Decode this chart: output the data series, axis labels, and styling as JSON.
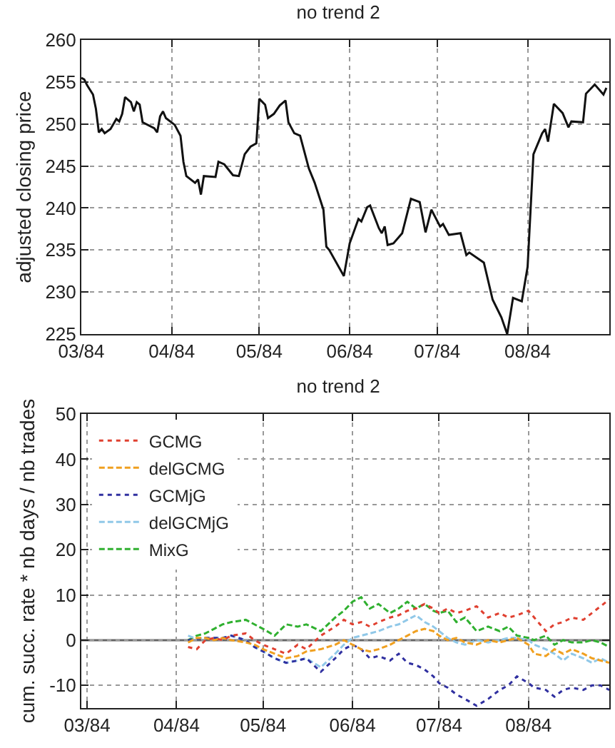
{
  "chart_data": [
    {
      "type": "line",
      "title": "no trend 2",
      "ylabel": "adjusted closing price",
      "grid": true,
      "legend": false,
      "marker": "none",
      "xlim": [
        "1984-03-01",
        "1984-08-29"
      ],
      "xticks": [
        {
          "value": "1984-03-01",
          "label": "03/84"
        },
        {
          "value": "1984-04-01",
          "label": "04/84"
        },
        {
          "value": "1984-05-01",
          "label": "05/84"
        },
        {
          "value": "1984-06-01",
          "label": "06/84"
        },
        {
          "value": "1984-07-01",
          "label": "07/84"
        },
        {
          "value": "1984-08-01",
          "label": "08/84"
        }
      ],
      "ylim": [
        225,
        260
      ],
      "yticks": [
        225,
        230,
        235,
        240,
        245,
        250,
        255,
        260
      ],
      "x": [
        "1984-03-01",
        "1984-03-02",
        "1984-03-03",
        "1984-03-05",
        "1984-03-06",
        "1984-03-07",
        "1984-03-08",
        "1984-03-09",
        "1984-03-11",
        "1984-03-12",
        "1984-03-13",
        "1984-03-14",
        "1984-03-15",
        "1984-03-16",
        "1984-03-18",
        "1984-03-19",
        "1984-03-20",
        "1984-03-21",
        "1984-03-22",
        "1984-03-26",
        "1984-03-27",
        "1984-03-28",
        "1984-03-29",
        "1984-03-30",
        "1984-04-02",
        "1984-04-04",
        "1984-04-05",
        "1984-04-06",
        "1984-04-09",
        "1984-04-10",
        "1984-04-11",
        "1984-04-12",
        "1984-04-16",
        "1984-04-17",
        "1984-04-19",
        "1984-04-22",
        "1984-04-24",
        "1984-04-26",
        "1984-04-28",
        "1984-04-30",
        "1984-05-01",
        "1984-05-03",
        "1984-05-04",
        "1984-05-06",
        "1984-05-08",
        "1984-05-10",
        "1984-05-11",
        "1984-05-13",
        "1984-05-15",
        "1984-05-18",
        "1984-05-20",
        "1984-05-23",
        "1984-05-24",
        "1984-05-25",
        "1984-05-30",
        "1984-06-01",
        "1984-06-04",
        "1984-06-05",
        "1984-06-07",
        "1984-06-08",
        "1984-06-11",
        "1984-06-12",
        "1984-06-13",
        "1984-06-14",
        "1984-06-16",
        "1984-06-19",
        "1984-06-22",
        "1984-06-25",
        "1984-06-27",
        "1984-06-29",
        "1984-07-02",
        "1984-07-03",
        "1984-07-05",
        "1984-07-09",
        "1984-07-11",
        "1984-07-12",
        "1984-07-17",
        "1984-07-20",
        "1984-07-23",
        "1984-07-25",
        "1984-07-27",
        "1984-07-30",
        "1984-08-01",
        "1984-08-03",
        "1984-08-06",
        "1984-08-07",
        "1984-08-08",
        "1984-08-10",
        "1984-08-13",
        "1984-08-15",
        "1984-08-16",
        "1984-08-20",
        "1984-08-21",
        "1984-08-24",
        "1984-08-27",
        "1984-08-28"
      ],
      "series": [
        {
          "color": "#111111",
          "line_style": "solid",
          "values": [
            255.5,
            255.3,
            254.6,
            253.5,
            251.8,
            249.0,
            249.4,
            248.9,
            249.4,
            250.0,
            250.6,
            250.3,
            251.2,
            253.2,
            252.6,
            251.5,
            252.6,
            252.3,
            250.2,
            249.5,
            249.0,
            250.9,
            251.5,
            250.7,
            249.9,
            248.6,
            245.5,
            243.8,
            243.0,
            243.4,
            241.6,
            243.8,
            243.7,
            245.5,
            245.2,
            243.9,
            243.8,
            246.4,
            247.3,
            247.7,
            253.0,
            252.3,
            250.7,
            251.2,
            252.2,
            252.8,
            250.2,
            248.9,
            248.6,
            244.7,
            243.0,
            239.8,
            235.4,
            235.0,
            231.9,
            235.8,
            238.7,
            238.4,
            240.1,
            240.3,
            237.6,
            237.0,
            237.8,
            235.6,
            235.8,
            237.0,
            241.1,
            240.7,
            237.1,
            239.8,
            237.8,
            238.1,
            236.8,
            237.0,
            234.4,
            234.7,
            233.5,
            229.1,
            227.0,
            225.0,
            229.3,
            228.9,
            233.0,
            246.4,
            248.9,
            249.4,
            247.9,
            252.4,
            251.3,
            249.6,
            250.3,
            250.2,
            253.6,
            254.7,
            253.5,
            254.3
          ]
        }
      ]
    },
    {
      "type": "line",
      "title": "no trend 2",
      "ylabel": "cum. succ. rate * nb days / nb trades",
      "grid": true,
      "legend": "top left",
      "marker": "none",
      "xlim": [
        "1984-02-28",
        "1984-08-29"
      ],
      "xticks": [
        {
          "value": "1984-03-01",
          "label": "03/84"
        },
        {
          "value": "1984-04-01",
          "label": "04/84"
        },
        {
          "value": "1984-05-01",
          "label": "05/84"
        },
        {
          "value": "1984-06-01",
          "label": "06/84"
        },
        {
          "value": "1984-07-01",
          "label": "07/84"
        },
        {
          "value": "1984-08-01",
          "label": "08/84"
        }
      ],
      "ylim": [
        -15,
        50
      ],
      "yticks": [
        -10,
        0,
        10,
        20,
        30,
        40,
        50
      ],
      "ref_lines": [
        {
          "axis": "y",
          "value": 0,
          "color": "#666666",
          "line_style": "solid"
        }
      ],
      "x": [
        "1984-04-05",
        "1984-04-08",
        "1984-04-11",
        "1984-04-14",
        "1984-04-17",
        "1984-04-20",
        "1984-04-25",
        "1984-04-28",
        "1984-05-01",
        "1984-05-05",
        "1984-05-09",
        "1984-05-13",
        "1984-05-16",
        "1984-05-21",
        "1984-05-26",
        "1984-05-29",
        "1984-06-01",
        "1984-06-04",
        "1984-06-07",
        "1984-06-10",
        "1984-06-14",
        "1984-06-17",
        "1984-06-20",
        "1984-06-23",
        "1984-06-26",
        "1984-06-29",
        "1984-07-01",
        "1984-07-04",
        "1984-07-07",
        "1984-07-10",
        "1984-07-14",
        "1984-07-18",
        "1984-07-22",
        "1984-07-25",
        "1984-07-28",
        "1984-08-01",
        "1984-08-03",
        "1984-08-07",
        "1984-08-10",
        "1984-08-13",
        "1984-08-16",
        "1984-08-20",
        "1984-08-23",
        "1984-08-26",
        "1984-08-29"
      ],
      "series": [
        {
          "name": "GCMG",
          "color": "#e04030",
          "line_style": "dotted",
          "values": [
            -1.5,
            -2,
            0,
            0.5,
            0,
            1,
            1.5,
            0,
            -1,
            -2,
            -3,
            -1,
            -2,
            1,
            3,
            4.5,
            3.5,
            4,
            3,
            4,
            5,
            5.5,
            6.5,
            7,
            8,
            7,
            6,
            7,
            6,
            6.5,
            7.5,
            5,
            6,
            5,
            5.5,
            6.5,
            5,
            2,
            3.5,
            4,
            5,
            4.5,
            6,
            7.5,
            9
          ]
        },
        {
          "name": "delGCMG",
          "color": "#f0a020",
          "line_style": "dashed",
          "values": [
            -0.5,
            0.5,
            0.5,
            0,
            0.5,
            0,
            -0.5,
            -1,
            -2,
            -3,
            -4,
            -3.5,
            -2.5,
            -2,
            -1,
            0,
            -1,
            -2,
            -2.5,
            -2,
            -1,
            0,
            1,
            2,
            2.5,
            2,
            1,
            0,
            0.5,
            -0.5,
            -1,
            0,
            -0.5,
            0,
            0.5,
            -1,
            -3,
            -3.5,
            -2,
            -3,
            -2,
            -3,
            -4,
            -4.5,
            -5
          ]
        },
        {
          "name": "GCMjG",
          "color": "#3030a0",
          "line_style": "dotted",
          "values": [
            0,
            0.3,
            0.5,
            0.5,
            0.5,
            1,
            0,
            -1.5,
            -2.5,
            -4,
            -5,
            -4.5,
            -4,
            -7,
            -4,
            -2,
            -1,
            -2,
            -4,
            -3.5,
            -4.5,
            -3,
            -5,
            -5.5,
            -6.5,
            -8,
            -9.5,
            -10.5,
            -12,
            -13,
            -14.5,
            -13,
            -11,
            -10,
            -8,
            -9.5,
            -10.5,
            -11,
            -12.5,
            -11,
            -10.5,
            -11,
            -10,
            -10,
            -11
          ]
        },
        {
          "name": "delGCMjG",
          "color": "#90c8e8",
          "line_style": "dashed",
          "values": [
            1,
            0.3,
            0.5,
            0.5,
            0.5,
            1,
            0,
            -1.5,
            -2.5,
            -4,
            -5,
            -4.5,
            -4,
            -6,
            -3,
            -1,
            0.5,
            1,
            1.5,
            2,
            3,
            3.5,
            4.5,
            5.5,
            4,
            3,
            2,
            0.5,
            -0.5,
            -1,
            0,
            -0.5,
            0,
            0.5,
            0.5,
            0,
            -1,
            -2,
            -3,
            -4.5,
            -3,
            -4,
            -5,
            -4,
            -5
          ]
        },
        {
          "name": "MixG",
          "color": "#30b030",
          "line_style": "dashed",
          "values": [
            0,
            1,
            1.5,
            2.5,
            3.5,
            4,
            4.5,
            3.5,
            2.5,
            1,
            3.5,
            3,
            3.5,
            2,
            5,
            6.5,
            8.5,
            9.5,
            7,
            8,
            6,
            7,
            8.5,
            7,
            8,
            6.5,
            6,
            6.5,
            4,
            5,
            2,
            3,
            2,
            3,
            1,
            0.5,
            0,
            1,
            -1,
            0,
            -0.5,
            -0.5,
            0,
            -0.5,
            -1.5
          ]
        }
      ]
    }
  ]
}
